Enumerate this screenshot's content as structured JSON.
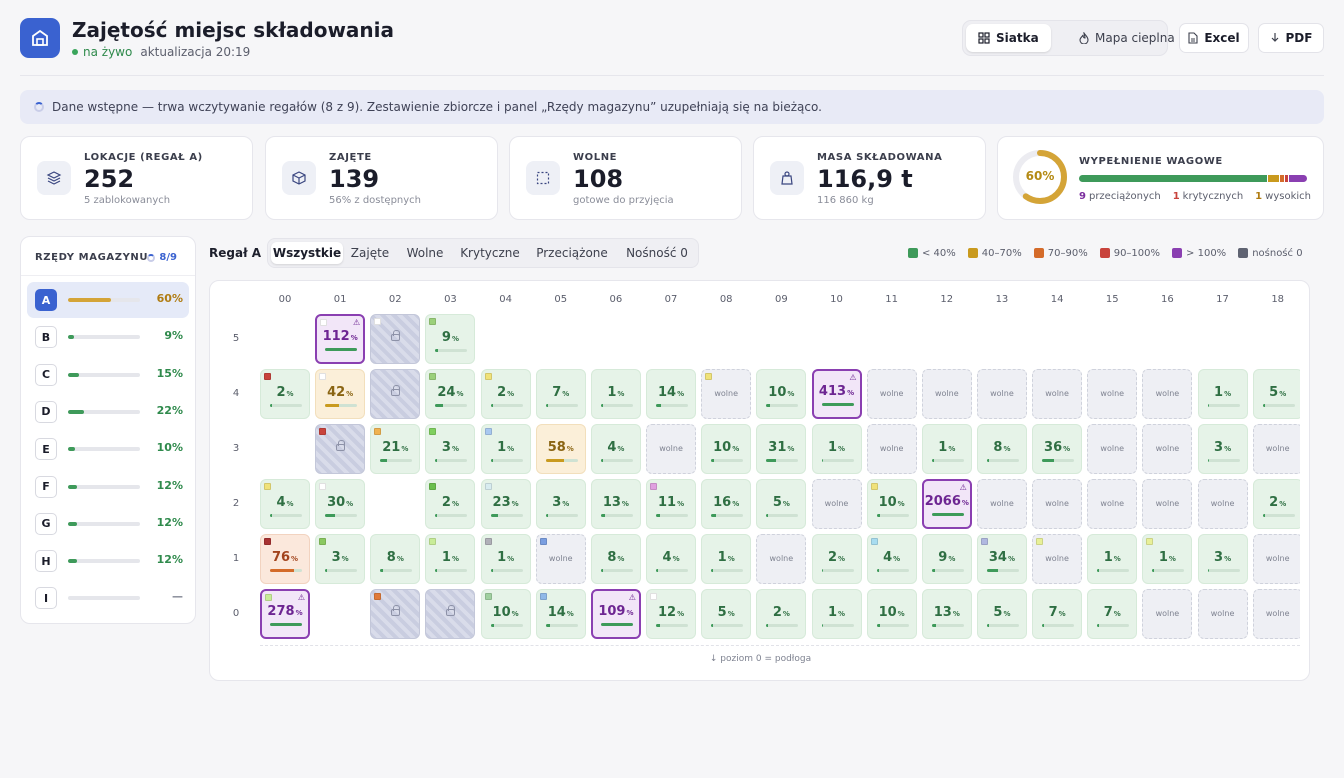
{
  "header": {
    "title": "Zajętość miejsc składowania",
    "live": "na żywo",
    "updated": "aktualizacja 20:19",
    "views": [
      {
        "label": "Siatka",
        "icon": "grid-icon",
        "active": true
      },
      {
        "label": "Mapa cieplna",
        "icon": "flame-icon",
        "active": false
      }
    ],
    "export": [
      {
        "label": "Excel",
        "icon": "file-icon"
      },
      {
        "label": "PDF",
        "icon": "download-icon"
      }
    ]
  },
  "banner": "Dane wstępne — trwa wczytywanie regałów (8 z 9). Zestawienie zbiorcze i panel „Rzędy magazynu” uzupełniają się na bieżąco.",
  "kpis": [
    {
      "label": "LOKACJE (REGAŁ A)",
      "value": "252",
      "sub": "5 zablokowanych",
      "icon": "layers-icon"
    },
    {
      "label": "ZAJĘTE",
      "value": "139",
      "sub": "56% z dostępnych",
      "icon": "box-icon"
    },
    {
      "label": "WOLNE",
      "value": "108",
      "sub": "gotowe do przyjęcia",
      "icon": "empty-slot-icon"
    },
    {
      "label": "MASA SKŁADOWANA",
      "value": "116,9 t",
      "sub": "116 860 kg",
      "icon": "weight-icon"
    }
  ],
  "weight": {
    "label": "WYPEŁNIENIE WAGOWE",
    "pct_label": "60%",
    "pct": 60,
    "stats": [
      {
        "n": "9",
        "t": "przeciążonych",
        "color": "#7b2d9e"
      },
      {
        "n": "1",
        "t": "krytycznych",
        "color": "#c8433c"
      },
      {
        "n": "1",
        "t": "wysokich",
        "color": "#b07c12"
      }
    ],
    "segments": [
      {
        "frac": 0.84,
        "color": "#3e9a5a"
      },
      {
        "frac": 0.05,
        "color": "#c99a1e"
      },
      {
        "frac": 0.015,
        "color": "#d46b2a"
      },
      {
        "frac": 0.015,
        "color": "#c8433c"
      },
      {
        "frac": 0.08,
        "color": "#8a3fb1"
      }
    ]
  },
  "rows_panel": {
    "title": "RZĘDY MAGAZYNU",
    "count": "8/9",
    "rows": [
      {
        "id": "A",
        "pct": "60%",
        "fill": 0.6,
        "color": "#d4a437",
        "active": true
      },
      {
        "id": "B",
        "pct": "9%",
        "fill": 0.09,
        "color": "#3e9a5a"
      },
      {
        "id": "C",
        "pct": "15%",
        "fill": 0.15,
        "color": "#3e9a5a"
      },
      {
        "id": "D",
        "pct": "22%",
        "fill": 0.22,
        "color": "#3e9a5a"
      },
      {
        "id": "E",
        "pct": "10%",
        "fill": 0.1,
        "color": "#3e9a5a"
      },
      {
        "id": "F",
        "pct": "12%",
        "fill": 0.12,
        "color": "#3e9a5a"
      },
      {
        "id": "G",
        "pct": "12%",
        "fill": 0.12,
        "color": "#3e9a5a"
      },
      {
        "id": "H",
        "pct": "12%",
        "fill": 0.12,
        "color": "#3e9a5a"
      },
      {
        "id": "I",
        "pct": "—",
        "fill": 0,
        "color": "#3e9a5a"
      }
    ]
  },
  "rack": {
    "label": "Regał A",
    "filters": [
      {
        "label": "Wszystkie",
        "active": true
      },
      {
        "label": "Zajęte"
      },
      {
        "label": "Wolne"
      },
      {
        "label": "Krytyczne"
      },
      {
        "label": "Przeciążone"
      },
      {
        "label": "Nośność 0"
      }
    ],
    "legend": [
      {
        "label": "< 40%",
        "color": "#3e9a5a"
      },
      {
        "label": "40–70%",
        "color": "#c99a1e"
      },
      {
        "label": "70–90%",
        "color": "#d46b2a"
      },
      {
        "label": "90–100%",
        "color": "#c8433c"
      },
      {
        "label": "> 100%",
        "color": "#8a3fb1"
      },
      {
        "label": "nośność 0",
        "color": "#5f6372"
      }
    ],
    "columns": [
      "00",
      "01",
      "02",
      "03",
      "04",
      "05",
      "06",
      "07",
      "08",
      "09",
      "10",
      "11",
      "12",
      "13",
      "14",
      "15",
      "16",
      "17",
      "18"
    ],
    "levels": [
      "5",
      "4",
      "3",
      "2",
      "1",
      "0"
    ],
    "free_label": "wolne",
    "pct_sign": "%",
    "footer": "↓ poziom 0 = podłoga",
    "grid": [
      [
        "",
        "112",
        "L",
        "9",
        "",
        "",
        "",
        "",
        "",
        "",
        "",
        "",
        "",
        "",
        "",
        "",
        "",
        "",
        ""
      ],
      [
        "2",
        "42",
        "L",
        "24",
        "2",
        "7",
        "1",
        "14",
        "F",
        "10",
        "413",
        "F",
        "F",
        "F",
        "F",
        "F",
        "F",
        "1",
        "5"
      ],
      [
        "",
        "L",
        "21",
        "3",
        "1",
        "58",
        "4",
        "F",
        "10",
        "31",
        "1",
        "F",
        "1",
        "8",
        "36",
        "F",
        "F",
        "3",
        "F"
      ],
      [
        "4",
        "30",
        "",
        "2",
        "23",
        "3",
        "13",
        "11",
        "16",
        "5",
        "F",
        "10",
        "2066",
        "F",
        "F",
        "F",
        "F",
        "F",
        "2"
      ],
      [
        "76",
        "3",
        "8",
        "1",
        "1",
        "F",
        "8",
        "4",
        "1",
        "F",
        "2",
        "4",
        "9",
        "34",
        "F",
        "1",
        "1",
        "3",
        "F"
      ],
      [
        "278",
        "",
        "L",
        "L",
        "10",
        "14",
        "109",
        "12",
        "5",
        "2",
        "1",
        "10",
        "13",
        "5",
        "7",
        "7",
        "F",
        "F",
        "F"
      ]
    ],
    "tags": {
      "0,1": "#ffffff",
      "0,2": "#ffffff",
      "0,3": "#9bd07a",
      "1,0": "#c8433c",
      "1,1": "#ffffff",
      "1,3": "#9bd07a",
      "1,4": "#f0e27a",
      "1,8": "#f0e27a",
      "2,1": "#c8433c",
      "2,2": "#f0b250",
      "2,3": "#7fcf5e",
      "2,4": "#a8c8f0",
      "3,0": "#f0e27a",
      "3,1": "#ffffff",
      "3,3": "#6bbf4e",
      "3,4": "#d8ecf0",
      "3,7": "#e0a0e0",
      "3,11": "#f0e27a",
      "4,0": "#a83232",
      "4,1": "#8ac860",
      "4,3": "#c8ec98",
      "4,4": "#b0b0b8",
      "4,5": "#7a9ee0",
      "4,11": "#a8dcf0",
      "4,13": "#b0b8e0",
      "4,14": "#e8f098",
      "4,16": "#e8f098",
      "5,0": "#c8ec98",
      "5,2": "#e07a3a",
      "5,4": "#a0d0a0",
      "5,5": "#90b8e8",
      "5,7": "#ffffff"
    }
  }
}
